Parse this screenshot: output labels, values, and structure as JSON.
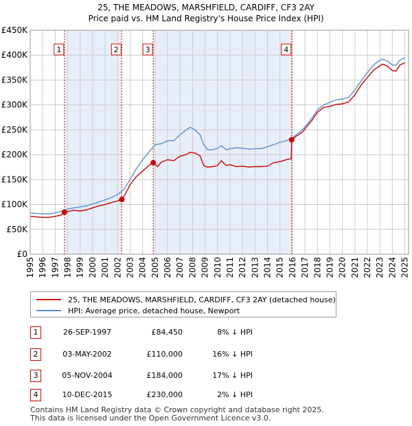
{
  "title_line1": "25, THE MEADOWS, MARSHFIELD, CARDIFF, CF3 2AY",
  "title_line2": "Price paid vs. HM Land Registry's House Price Index (HPI)",
  "colors": {
    "price_paid": "#cc0000",
    "hpi": "#5b8fd0",
    "shade": "#e8eef9",
    "grid": "#cccccc",
    "marker_line": "#cc0000"
  },
  "legend": {
    "price_paid_label": "25, THE MEADOWS, MARSHFIELD, CARDIFF, CF3 2AY (detached house)",
    "hpi_label": "HPI: Average price, detached house, Newport"
  },
  "transactions": [
    {
      "num": "1",
      "date": "26-SEP-1997",
      "price": "£84,450",
      "hpi": "8% ↓ HPI"
    },
    {
      "num": "2",
      "date": "03-MAY-2002",
      "price": "£110,000",
      "hpi": "16% ↓ HPI"
    },
    {
      "num": "3",
      "date": "05-NOV-2004",
      "price": "£184,000",
      "hpi": "17% ↓ HPI"
    },
    {
      "num": "4",
      "date": "10-DEC-2015",
      "price": "£230,000",
      "hpi": "2% ↓ HPI"
    }
  ],
  "footer_line1": "Contains HM Land Registry data © Crown copyright and database right 2025.",
  "footer_line2": "This data is licensed under the Open Government Licence v3.0.",
  "chart_data": {
    "type": "line",
    "title": "Price paid vs. HM Land Registry's House Price Index (HPI)",
    "xlabel": "",
    "ylabel": "",
    "xlim": [
      1995,
      2025.3
    ],
    "ylim": [
      0,
      450000
    ],
    "y_ticks": [
      0,
      50000,
      100000,
      150000,
      200000,
      250000,
      300000,
      350000,
      400000,
      450000
    ],
    "y_tick_labels": [
      "£0",
      "£50K",
      "£100K",
      "£150K",
      "£200K",
      "£250K",
      "£300K",
      "£350K",
      "£400K",
      "£450K"
    ],
    "x_ticks": [
      1995,
      1996,
      1997,
      1998,
      1999,
      2000,
      2001,
      2002,
      2003,
      2004,
      2005,
      2006,
      2007,
      2008,
      2009,
      2010,
      2011,
      2012,
      2013,
      2014,
      2015,
      2016,
      2017,
      2018,
      2019,
      2020,
      2021,
      2022,
      2023,
      2024,
      2025
    ],
    "x_tick_labels": [
      "1995",
      "1996",
      "1997",
      "1998",
      "1999",
      "2000",
      "2001",
      "2002",
      "2003",
      "2004",
      "2005",
      "2006",
      "2007",
      "2008",
      "2009",
      "2010",
      "2011",
      "2012",
      "2013",
      "2014",
      "2015",
      "2016",
      "2017",
      "2018",
      "2019",
      "2020",
      "2021",
      "2022",
      "2023",
      "2024",
      "2025"
    ],
    "grid": true,
    "shaded_ranges": [
      [
        1997.74,
        2002.33
      ],
      [
        2004.85,
        2015.94
      ]
    ],
    "sales": [
      {
        "label": "1",
        "x": 1997.74,
        "y": 84450
      },
      {
        "label": "2",
        "x": 2002.33,
        "y": 110000
      },
      {
        "label": "3",
        "x": 2004.85,
        "y": 184000
      },
      {
        "label": "4",
        "x": 2015.94,
        "y": 230000
      }
    ],
    "series": [
      {
        "name": "25, THE MEADOWS, MARSHFIELD, CARDIFF, CF3 2AY (detached house)",
        "x": [
          1995.0,
          1995.5,
          1996.0,
          1996.5,
          1997.0,
          1997.5,
          1997.74,
          1998.0,
          1998.5,
          1999.0,
          1999.5,
          2000.0,
          2000.5,
          2001.0,
          2001.5,
          2002.0,
          2002.33,
          2002.6,
          2003.0,
          2003.5,
          2004.0,
          2004.5,
          2004.85,
          2005.2,
          2005.5,
          2006.0,
          2006.5,
          2007.0,
          2007.5,
          2007.8,
          2008.2,
          2008.6,
          2008.9,
          2009.2,
          2009.6,
          2010.0,
          2010.3,
          2010.7,
          2011.0,
          2011.5,
          2012.0,
          2012.5,
          2013.0,
          2013.5,
          2014.0,
          2014.5,
          2015.0,
          2015.5,
          2015.9,
          2015.94,
          2016.3,
          2016.8,
          2017.2,
          2017.6,
          2018.0,
          2018.5,
          2019.0,
          2019.5,
          2020.0,
          2020.5,
          2021.0,
          2021.5,
          2022.0,
          2022.5,
          2022.8,
          2023.2,
          2023.6,
          2024.0,
          2024.3,
          2024.6,
          2025.0
        ],
        "values": [
          76000,
          75000,
          74000,
          74000,
          76000,
          79000,
          84450,
          86000,
          88000,
          87000,
          89000,
          93000,
          97000,
          100000,
          104000,
          107000,
          110000,
          120000,
          140000,
          156000,
          167000,
          178000,
          184000,
          176000,
          185000,
          190000,
          188000,
          197000,
          200000,
          205000,
          203000,
          198000,
          178000,
          175000,
          176000,
          178000,
          188000,
          178000,
          180000,
          176000,
          177000,
          175000,
          176000,
          176000,
          177000,
          184000,
          186000,
          190000,
          192000,
          230000,
          237000,
          245000,
          258000,
          270000,
          285000,
          295000,
          297000,
          301000,
          302000,
          306000,
          320000,
          340000,
          355000,
          370000,
          375000,
          382000,
          378000,
          369000,
          368000,
          380000,
          385000
        ]
      },
      {
        "name": "HPI: Average price, detached house, Newport",
        "x": [
          1995.0,
          1995.5,
          1996.0,
          1996.5,
          1997.0,
          1997.5,
          1998.0,
          1998.5,
          1999.0,
          1999.5,
          2000.0,
          2000.5,
          2001.0,
          2001.5,
          2002.0,
          2002.5,
          2003.0,
          2003.5,
          2004.0,
          2004.5,
          2005.0,
          2005.5,
          2006.0,
          2006.5,
          2007.0,
          2007.5,
          2007.8,
          2008.2,
          2008.6,
          2008.9,
          2009.2,
          2009.6,
          2010.0,
          2010.3,
          2010.7,
          2011.0,
          2011.5,
          2012.0,
          2012.5,
          2013.0,
          2013.5,
          2014.0,
          2014.5,
          2015.0,
          2015.5,
          2015.9,
          2016.3,
          2016.8,
          2017.2,
          2017.6,
          2018.0,
          2018.5,
          2019.0,
          2019.5,
          2020.0,
          2020.5,
          2021.0,
          2021.5,
          2022.0,
          2022.5,
          2022.8,
          2023.2,
          2023.6,
          2024.0,
          2024.3,
          2024.6,
          2025.0
        ],
        "values": [
          83000,
          82000,
          81000,
          81000,
          83000,
          86000,
          91000,
          93000,
          95000,
          97000,
          101000,
          105000,
          109000,
          114000,
          120000,
          130000,
          150000,
          172000,
          190000,
          205000,
          220000,
          222000,
          228000,
          228000,
          240000,
          250000,
          255000,
          250000,
          240000,
          220000,
          210000,
          210000,
          213000,
          218000,
          210000,
          212000,
          214000,
          213000,
          211000,
          212000,
          212000,
          216000,
          220000,
          225000,
          228000,
          232000,
          240000,
          250000,
          262000,
          275000,
          290000,
          300000,
          305000,
          310000,
          312000,
          315000,
          330000,
          348000,
          365000,
          380000,
          386000,
          392000,
          388000,
          380000,
          380000,
          390000,
          395000
        ]
      }
    ]
  }
}
